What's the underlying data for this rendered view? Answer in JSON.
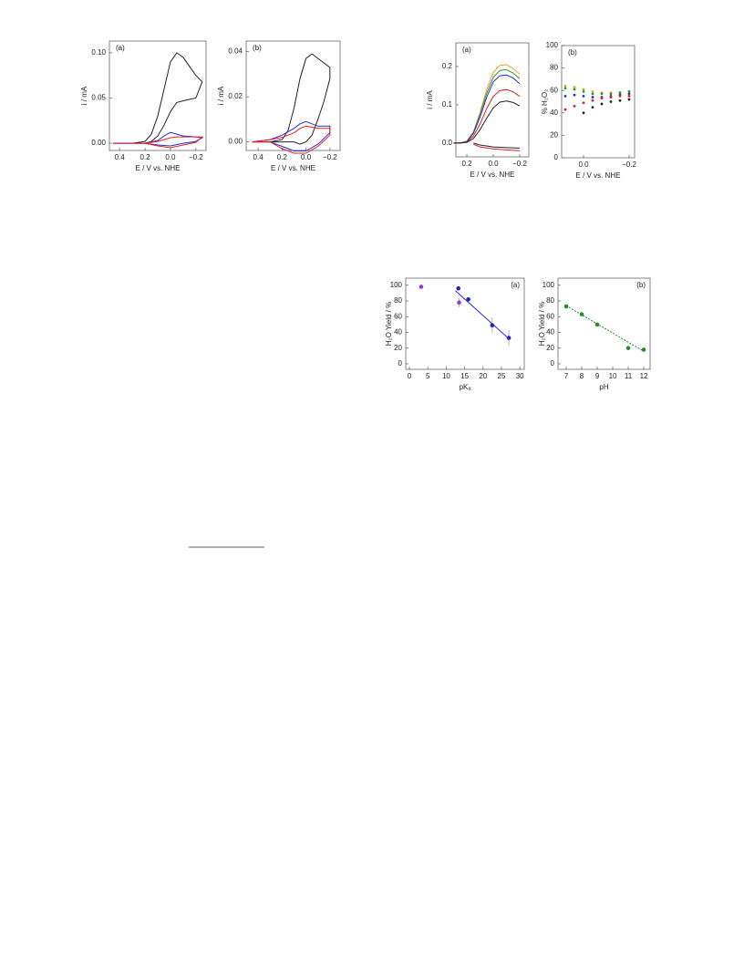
{
  "chart_data": [
    {
      "type": "line",
      "title": "(a)",
      "xlabel": "E / V vs. NHE",
      "ylabel": "i / mA",
      "xlim": [
        0.48,
        -0.28
      ],
      "xticks": [
        0.4,
        0.2,
        {
          "value": 0,
          "label": "0.0"
        },
        {
          "value": -0.2,
          "label": "−0.2"
        }
      ],
      "ylim": [
        -0.008,
        0.113
      ],
      "yticks": [
        {
          "value": 0,
          "label": "0.00"
        },
        0.05,
        {
          "value": 0.1,
          "label": "0.10"
        }
      ],
      "series": [
        {
          "color": "#222222",
          "x": [
            0.45,
            0.3,
            0.2,
            0.15,
            0.1,
            0.05,
            0.0,
            -0.05,
            -0.1,
            -0.15,
            -0.2,
            -0.25,
            -0.2,
            -0.1,
            -0.05,
            0.0,
            0.05,
            0.1,
            0.15,
            0.2,
            0.3,
            0.45
          ],
          "values": [
            0,
            0,
            0.002,
            0.01,
            0.03,
            0.06,
            0.09,
            0.1,
            0.095,
            0.085,
            0.075,
            0.068,
            0.05,
            0.047,
            0.045,
            0.035,
            0.02,
            0.008,
            0.002,
            0,
            0,
            0
          ]
        },
        {
          "color": "#2b2bdf",
          "x": [
            0.45,
            0.2,
            0.1,
            0.05,
            0.0,
            -0.05,
            -0.1,
            -0.2,
            -0.25,
            -0.2,
            -0.1,
            0.0,
            0.1,
            0.2,
            0.45
          ],
          "values": [
            0,
            0,
            0.003,
            0.008,
            0.012,
            0.01,
            0.008,
            0.007,
            0.006,
            0.002,
            0,
            -0.003,
            -0.002,
            0,
            0
          ]
        },
        {
          "color": "#e02020",
          "x": [
            0.45,
            0.2,
            0.1,
            0.05,
            0.0,
            -0.05,
            -0.1,
            -0.2,
            -0.25,
            -0.2,
            -0.1,
            0.0,
            0.1,
            0.2,
            0.45
          ],
          "values": [
            0,
            0,
            0.002,
            0.004,
            0.006,
            0.007,
            0.007,
            0.007,
            0.007,
            0.001,
            -0.002,
            -0.005,
            -0.003,
            0,
            0
          ]
        }
      ]
    },
    {
      "type": "line",
      "title": "(b)",
      "xlabel": "E / V vs. NHE",
      "ylabel": "i / mA",
      "xlim": [
        0.5,
        -0.285
      ],
      "xticks": [
        0.4,
        0.2,
        {
          "value": 0,
          "label": "0.0"
        },
        {
          "value": -0.2,
          "label": "−0.2"
        }
      ],
      "ylim": [
        -0.0038,
        0.0447
      ],
      "yticks": [
        {
          "value": 0,
          "label": "0.00"
        },
        0.02,
        0.04
      ],
      "series": [
        {
          "color": "#222222",
          "x": [
            0.45,
            0.3,
            0.2,
            0.15,
            0.1,
            0.05,
            0.0,
            -0.05,
            -0.1,
            -0.15,
            -0.2,
            -0.2,
            -0.15,
            -0.1,
            -0.05,
            0.0,
            0.05,
            0.1,
            0.15,
            0.2,
            0.3,
            0.45
          ],
          "values": [
            0,
            0,
            0.001,
            0.005,
            0.015,
            0.028,
            0.037,
            0.039,
            0.037,
            0.035,
            0.033,
            0.028,
            0.018,
            0.01,
            0.003,
            0,
            -0.001,
            0,
            0,
            0,
            0,
            0
          ]
        },
        {
          "color": "#2b2bdf",
          "x": [
            0.45,
            0.3,
            0.2,
            0.1,
            0.05,
            0.0,
            -0.1,
            -0.2,
            -0.2,
            -0.1,
            0.0,
            0.1,
            0.2,
            0.3,
            0.45
          ],
          "values": [
            0,
            0.001,
            0.003,
            0.006,
            0.008,
            0.009,
            0.007,
            0.007,
            0.004,
            -0.001,
            -0.004,
            -0.004,
            -0.002,
            0,
            0
          ]
        },
        {
          "color": "#e02020",
          "x": [
            0.45,
            0.3,
            0.2,
            0.1,
            0.05,
            0.0,
            -0.1,
            -0.2,
            -0.2,
            -0.1,
            0.0,
            0.1,
            0.2,
            0.3,
            0.45
          ],
          "values": [
            0,
            0.001,
            0.002,
            0.004,
            0.006,
            0.007,
            0.006,
            0.006,
            0.003,
            -0.002,
            -0.005,
            -0.005,
            -0.003,
            0,
            0
          ]
        }
      ]
    },
    {
      "type": "line",
      "title": "(a)",
      "xlabel": "E / V vs. NHE",
      "ylabel": "i / mA",
      "xlim": [
        0.283,
        -0.269
      ],
      "xticks": [
        0.2,
        {
          "value": 0,
          "label": "0.0"
        },
        {
          "value": -0.2,
          "label": "−0.2"
        }
      ],
      "ylim": [
        -0.036,
        0.262
      ],
      "yticks": [
        {
          "value": 0,
          "label": "0.0"
        },
        0.1,
        0.2
      ],
      "series": [
        {
          "color": "#f0a020",
          "x": [
            0.3,
            0.25,
            0.2,
            0.15,
            0.1,
            0.05,
            0.0,
            -0.05,
            -0.1,
            -0.15,
            -0.2
          ],
          "values": [
            0,
            0,
            0.005,
            0.03,
            0.08,
            0.14,
            0.185,
            0.203,
            0.205,
            0.195,
            0.18
          ]
        },
        {
          "color": "#2a9a2a",
          "x": [
            0.3,
            0.25,
            0.2,
            0.15,
            0.1,
            0.05,
            0.0,
            -0.05,
            -0.1,
            -0.15,
            -0.2
          ],
          "values": [
            0,
            0,
            0.005,
            0.028,
            0.075,
            0.13,
            0.172,
            0.19,
            0.192,
            0.183,
            0.168
          ]
        },
        {
          "color": "#2b2bdf",
          "x": [
            0.3,
            0.25,
            0.2,
            0.15,
            0.1,
            0.05,
            0.0,
            -0.05,
            -0.1,
            -0.15,
            -0.2
          ],
          "values": [
            0,
            0,
            0.004,
            0.025,
            0.068,
            0.12,
            0.16,
            0.176,
            0.178,
            0.17,
            0.155
          ]
        },
        {
          "color": "#e02020",
          "x": [
            0.3,
            0.25,
            0.2,
            0.15,
            0.1,
            0.05,
            0.0,
            -0.05,
            -0.1,
            -0.15,
            -0.2
          ],
          "values": [
            0,
            0,
            0.003,
            0.018,
            0.05,
            0.09,
            0.122,
            0.137,
            0.14,
            0.134,
            0.122
          ]
        },
        {
          "color": "#222222",
          "x": [
            0.3,
            0.25,
            0.2,
            0.15,
            0.1,
            0.05,
            0.0,
            -0.05,
            -0.1,
            -0.15,
            -0.2
          ],
          "values": [
            0,
            0,
            0.002,
            0.012,
            0.035,
            0.065,
            0.092,
            0.107,
            0.11,
            0.106,
            0.097
          ]
        },
        {
          "color": "#222222",
          "x": [
            0.15,
            0.1,
            0.0,
            -0.1,
            -0.2
          ],
          "values": [
            0,
            -0.005,
            -0.01,
            -0.012,
            -0.013
          ]
        },
        {
          "color": "#e02020",
          "x": [
            0.15,
            0.1,
            0.0,
            -0.1,
            -0.2
          ],
          "values": [
            -0.003,
            -0.01,
            -0.015,
            -0.018,
            -0.02
          ]
        }
      ]
    },
    {
      "type": "scatter",
      "title": "(b)",
      "xlabel": "E / V vs. NHE",
      "ylabel": "% H₂O₂",
      "xlim": [
        0.096,
        -0.224
      ],
      "xticks": [
        {
          "value": 0,
          "label": "0.0"
        },
        {
          "value": -0.2,
          "label": "−0.2"
        }
      ],
      "ylim": [
        0,
        100
      ],
      "yticks": [
        0,
        20,
        40,
        60,
        80,
        100
      ],
      "series": [
        {
          "color": "#f0a020",
          "x": [
            0.08,
            0.04,
            0.0,
            -0.04,
            -0.08,
            -0.12,
            -0.16,
            -0.2
          ],
          "values": [
            64,
            63,
            61,
            59,
            58,
            58,
            58,
            59
          ]
        },
        {
          "color": "#2a9a2a",
          "x": [
            0.08,
            0.04,
            0.0,
            -0.04,
            -0.08,
            -0.12,
            -0.16,
            -0.2
          ],
          "values": [
            62,
            61,
            59,
            57,
            57,
            57,
            58,
            59
          ]
        },
        {
          "color": "#2b2bdf",
          "x": [
            0.08,
            0.04,
            0.0,
            -0.04,
            -0.08,
            -0.12,
            -0.16,
            -0.2
          ],
          "values": [
            55,
            56,
            55,
            54,
            54,
            55,
            56,
            57
          ]
        },
        {
          "color": "#e02020",
          "x": [
            0.08,
            0.04,
            0.0,
            -0.04,
            -0.08,
            -0.12,
            -0.16,
            -0.2
          ],
          "values": [
            43,
            46,
            49,
            51,
            53,
            54,
            55,
            55
          ]
        },
        {
          "color": "#222222",
          "x": [
            0.08,
            0.04,
            0.0,
            -0.04,
            -0.08,
            -0.12,
            -0.16,
            -0.2
          ],
          "values": [
            null,
            null,
            40,
            45,
            48,
            50,
            51,
            52
          ]
        }
      ]
    },
    {
      "type": "scatter",
      "title": "(a)",
      "xlabel": "pKₐ",
      "ylabel": "H₂O Yield / %",
      "xlim": [
        -1,
        31.2
      ],
      "xticks": [
        0,
        5,
        10,
        15,
        20,
        25,
        30
      ],
      "ylim": [
        -7,
        109
      ],
      "yticks": [
        0,
        20,
        40,
        60,
        80,
        100
      ],
      "series": [
        {
          "color": "#8e3fd6",
          "x": [
            3.2,
            13.5
          ],
          "values": [
            98,
            78
          ],
          "errors": [
            0,
            6
          ]
        },
        {
          "color": "#2323b8",
          "x": [
            13.3,
            16,
            22.5,
            27
          ],
          "values": [
            96,
            82,
            49,
            33
          ],
          "errors": [
            3,
            2,
            10,
            10
          ]
        },
        {
          "color": "#2b2bdf",
          "style": "line",
          "x": [
            12.5,
            27
          ],
          "values": [
            93,
            32
          ]
        }
      ]
    },
    {
      "type": "scatter",
      "title": "(b)",
      "xlabel": "pH",
      "ylabel": "H₂O Yield / %",
      "xlim": [
        6.47,
        12.41
      ],
      "xticks": [
        7,
        8,
        9,
        10,
        11,
        12
      ],
      "ylim": [
        -7,
        109
      ],
      "yticks": [
        0,
        20,
        40,
        60,
        80,
        100
      ],
      "series": [
        {
          "color": "#2a8a2a",
          "x": [
            7,
            8,
            9,
            11,
            12
          ],
          "values": [
            73,
            63,
            50,
            20,
            18
          ]
        },
        {
          "color": "#2a8a2a",
          "style": "line",
          "x": [
            7,
            12
          ],
          "values": [
            74,
            16
          ]
        }
      ]
    }
  ]
}
